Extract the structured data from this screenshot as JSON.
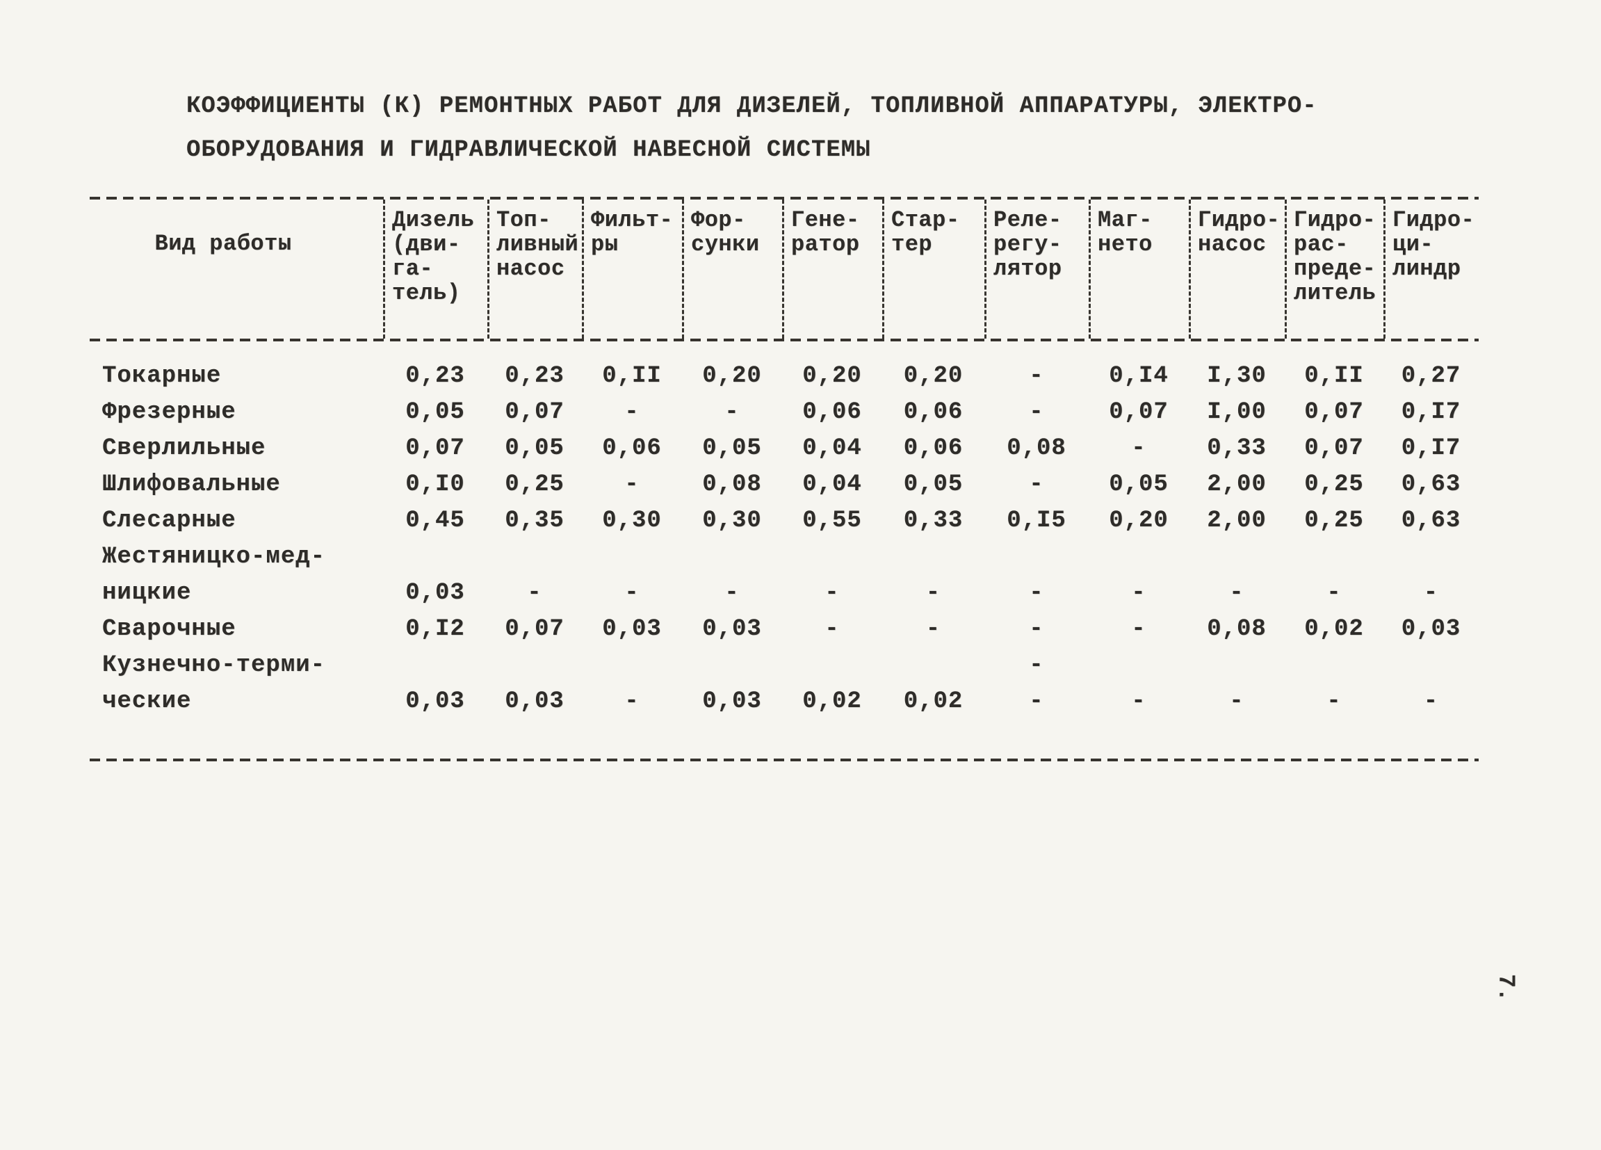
{
  "page_number": "7.",
  "title": {
    "line1": "КОЭФФИЦИЕНТЫ (К) РЕМОНТНЫХ РАБОТ ДЛЯ ДИЗЕЛЕЙ, ТОПЛИВНОЙ АППАРАТУРЫ, ЭЛЕКТРО-",
    "line2": "ОБОРУДОВАНИЯ И ГИДРАВЛИЧЕСКОЙ НАВЕСНОЙ СИСТЕМЫ"
  },
  "table": {
    "headers": [
      "Вид работы",
      "Дизель\n(дви-\nга-\nтель)",
      "Топ-\nливный\nнасос",
      "Фильт-\nры",
      "Фор-\nсунки",
      "Гене-\nратор",
      "Стар-\nтер",
      "Реле-\nрегу-\nлятор",
      "Маг-\nнето",
      "Гидро-\nнасос",
      "Гидро-\nрас-\nпреде-\nлитель",
      "Гидро-\nци-\nлиндр"
    ],
    "rows": [
      {
        "label": "Токарные",
        "values": [
          "0,23",
          "0,23",
          "0,II",
          "0,20",
          "0,20",
          "0,20",
          "-",
          "0,I4",
          "I,30",
          "0,II",
          "0,27"
        ]
      },
      {
        "label": "Фрезерные",
        "values": [
          "0,05",
          "0,07",
          "-",
          "-",
          "0,06",
          "0,06",
          "-",
          "0,07",
          "I,00",
          "0,07",
          "0,I7"
        ]
      },
      {
        "label": "Сверлильные",
        "values": [
          "0,07",
          "0,05",
          "0,06",
          "0,05",
          "0,04",
          "0,06",
          "0,08",
          "-",
          "0,33",
          "0,07",
          "0,I7"
        ]
      },
      {
        "label": "Шлифовальные",
        "values": [
          "0,I0",
          "0,25",
          "-",
          "0,08",
          "0,04",
          "0,05",
          "-",
          "0,05",
          "2,00",
          "0,25",
          "0,63"
        ]
      },
      {
        "label": "Слесарные",
        "values": [
          "0,45",
          "0,35",
          "0,30",
          "0,30",
          "0,55",
          "0,33",
          "0,I5",
          "0,20",
          "2,00",
          "0,25",
          "0,63"
        ]
      },
      {
        "label": "Жестяницко-мед-",
        "values": [
          "",
          "",
          "",
          "",
          "",
          "",
          "",
          "",
          "",
          "",
          ""
        ]
      },
      {
        "label": "ницкие",
        "values": [
          "0,03",
          "-",
          "-",
          "-",
          "-",
          "-",
          "-",
          "-",
          "-",
          "-",
          "-"
        ]
      },
      {
        "label": "Сварочные",
        "values": [
          "0,I2",
          "0,07",
          "0,03",
          "0,03",
          "-",
          "-",
          "-",
          "-",
          "0,08",
          "0,02",
          "0,03"
        ]
      },
      {
        "label": "Кузнечно-терми-",
        "values": [
          "",
          "",
          "",
          "",
          "",
          "",
          "-",
          "",
          "",
          "",
          ""
        ]
      },
      {
        "label": "ческие",
        "values": [
          "0,03",
          "0,03",
          "-",
          "0,03",
          "0,02",
          "0,02",
          "-",
          "-",
          "-",
          "-",
          "-"
        ]
      }
    ]
  },
  "ink_color": "#2e2c29",
  "paper_color": "#f6f5f0"
}
